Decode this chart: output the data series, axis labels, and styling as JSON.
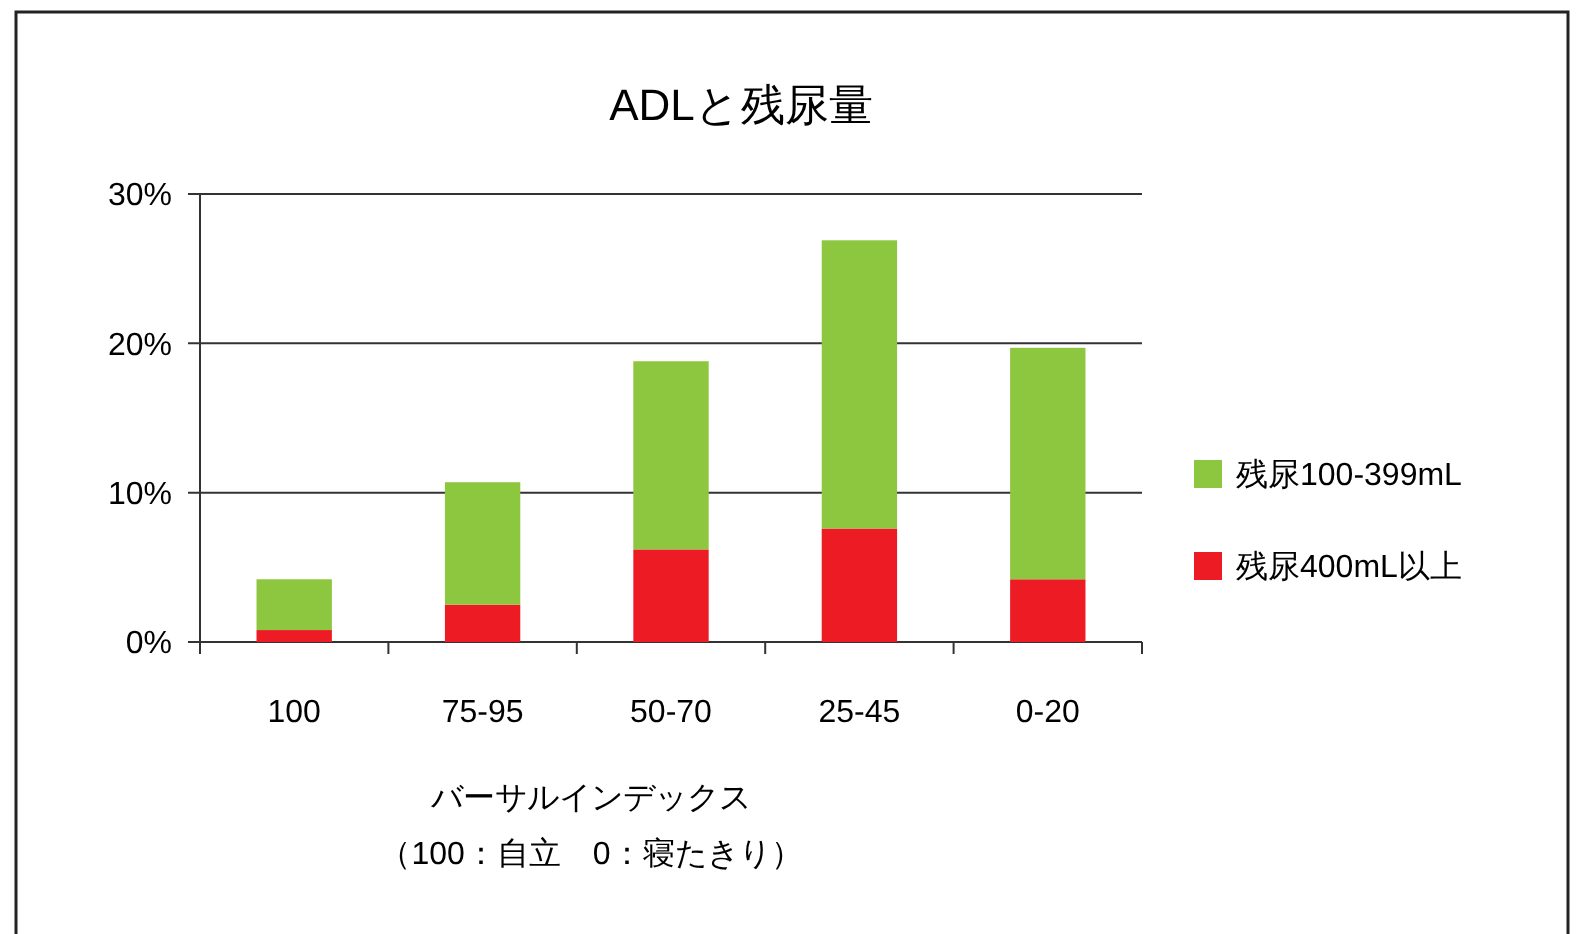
{
  "chart_data": {
    "type": "bar",
    "title": "ADLと残尿量",
    "xlabel": "バーサルインデックス",
    "annotations": [
      "（100：自立　0：寝たきり）"
    ],
    "categories": [
      "100",
      "75-95",
      "50-70",
      "25-45",
      "0-20"
    ],
    "stacked": true,
    "series": [
      {
        "name": "残尿400mL以上",
        "color": "#ed1c24",
        "values": [
          0.8,
          2.5,
          6.2,
          7.6,
          4.2
        ]
      },
      {
        "name": "残尿100-399mL",
        "color": "#8dc63f",
        "values": [
          3.4,
          8.2,
          12.6,
          19.3,
          15.5
        ]
      }
    ],
    "ylim": [
      0,
      30
    ],
    "yticks": [
      {
        "value": 0,
        "label": "0%"
      },
      {
        "value": 10,
        "label": "10%"
      },
      {
        "value": 20,
        "label": "20%"
      },
      {
        "value": 30,
        "label": "30%"
      }
    ],
    "grid": "y",
    "legend": "right"
  }
}
